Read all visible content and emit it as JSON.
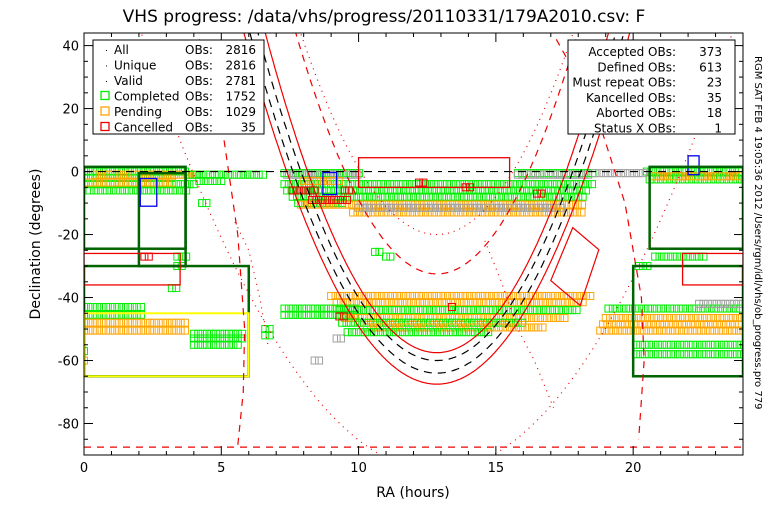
{
  "chart_data": {
    "type": "scatter",
    "title": "VHS progress: /data/vhs/progress/20110331/179A2010.csv: F",
    "xlabel": "RA (hours)",
    "ylabel": "Declination (degrees)",
    "xlim": [
      0,
      24
    ],
    "ylim": [
      -90,
      44
    ],
    "xticks": [
      0,
      5,
      10,
      15,
      20
    ],
    "yticks": [
      -80,
      -60,
      -40,
      -20,
      0,
      20,
      40
    ],
    "grid": false,
    "side_label": "RGM SAT FEB  4 19:05:36 2012 /Users/rgm/idl/vhs/ob_progress.pro 779",
    "colors": {
      "completed": "#00ee00",
      "pending": "#ffa500",
      "cancelled": "#ee0000",
      "other": "#a0a0a0",
      "boxgreen": "#006400",
      "yellow": "#ffff00",
      "blue": "#0000ee"
    },
    "legend_left": {
      "placement": "top-left",
      "items": [
        {
          "symbol": "dot",
          "label": "All",
          "obs_label": "OBs:",
          "value": "2816"
        },
        {
          "symbol": "dot",
          "label": "Unique",
          "obs_label": "OBs:",
          "value": "2816"
        },
        {
          "symbol": "dot",
          "label": "Valid",
          "obs_label": "OBs:",
          "value": "2781"
        },
        {
          "symbol": "completed",
          "label": "Completed",
          "obs_label": "OBs:",
          "value": "1752"
        },
        {
          "symbol": "pending",
          "label": "Pending",
          "obs_label": "OBs:",
          "value": "1029"
        },
        {
          "symbol": "cancelled",
          "label": "Cancelled",
          "obs_label": "OBs:",
          "value": "35"
        }
      ]
    },
    "legend_right": {
      "placement": "top-right",
      "items": [
        {
          "label": "Accepted OBs:",
          "value": "373"
        },
        {
          "label": "Defined OBs:",
          "value": "613"
        },
        {
          "label": "Must repeat OBs:",
          "value": "23"
        },
        {
          "label": "Kancelled OBs:",
          "value": "35"
        },
        {
          "label": "Aborted OBs:",
          "value": "18"
        },
        {
          "label": "Status X OBs:",
          "value": "1"
        }
      ]
    },
    "marker_rows": [
      {
        "status": "completed",
        "ra": [
          0,
          3.7
        ],
        "dec": 0
      },
      {
        "status": "completed",
        "ra": [
          0,
          3.3
        ],
        "dec": -2
      },
      {
        "status": "completed",
        "ra": [
          0,
          4.0
        ],
        "dec": -4
      },
      {
        "status": "completed",
        "ra": [
          0.2,
          3.8
        ],
        "dec": -6
      },
      {
        "status": "pending",
        "ra": [
          0.4,
          4.2
        ],
        "dec": -1
      },
      {
        "status": "pending",
        "ra": [
          0,
          3.2
        ],
        "dec": -3.5
      },
      {
        "status": "completed",
        "ra": [
          3.8,
          6.6
        ],
        "dec": -1
      },
      {
        "status": "completed",
        "ra": [
          4.2,
          5.0
        ],
        "dec": -3
      },
      {
        "status": "completed",
        "ra": [
          4.3,
          4.5
        ],
        "dec": -10
      },
      {
        "status": "completed",
        "ra": [
          3.4,
          3.8
        ],
        "dec": -27
      },
      {
        "status": "completed",
        "ra": [
          3.4,
          3.7
        ],
        "dec": -30
      },
      {
        "status": "completed",
        "ra": [
          3.2,
          3.4
        ],
        "dec": -37
      },
      {
        "status": "cancelled",
        "ra": [
          2.2,
          2.4
        ],
        "dec": -27
      },
      {
        "status": "completed",
        "ra": [
          0,
          2.1
        ],
        "dec": -43
      },
      {
        "status": "completed",
        "ra": [
          0,
          2.2
        ],
        "dec": -45.5
      },
      {
        "status": "pending",
        "ra": [
          0,
          3.8
        ],
        "dec": -48
      },
      {
        "status": "pending",
        "ra": [
          0,
          3.8
        ],
        "dec": -50.5
      },
      {
        "status": "completed",
        "ra": [
          4.0,
          5.8
        ],
        "dec": -51.5
      },
      {
        "status": "completed",
        "ra": [
          4.0,
          5.8
        ],
        "dec": -53
      },
      {
        "status": "completed",
        "ra": [
          4.0,
          5.6
        ],
        "dec": -55
      },
      {
        "status": "completed",
        "ra": [
          6.6,
          6.8
        ],
        "dec": -50
      },
      {
        "status": "completed",
        "ra": [
          6.6,
          6.8
        ],
        "dec": -52
      },
      {
        "status": "completed",
        "ra": [
          0,
          0.1
        ],
        "dec": -57
      },
      {
        "status": "pending",
        "ra": [
          0,
          0.1
        ],
        "dec": -60
      },
      {
        "status": "completed",
        "ra": [
          7.3,
          10.1
        ],
        "dec": -0.5
      },
      {
        "status": "other",
        "ra": [
          7.4,
          10.0
        ],
        "dec": -1
      },
      {
        "status": "completed",
        "ra": [
          15.8,
          18.6
        ],
        "dec": -0.5
      },
      {
        "status": "other",
        "ra": [
          15.8,
          18.5
        ],
        "dec": -1
      },
      {
        "status": "completed",
        "ra": [
          7.3,
          18.5
        ],
        "dec": -4
      },
      {
        "status": "completed",
        "ra": [
          7.4,
          18.4
        ],
        "dec": -6
      },
      {
        "status": "completed",
        "ra": [
          7.6,
          18.3
        ],
        "dec": -8
      },
      {
        "status": "completed",
        "ra": [
          7.8,
          9.5
        ],
        "dec": -10
      },
      {
        "status": "pending",
        "ra": [
          7.9,
          18.2
        ],
        "dec": -10.5
      },
      {
        "status": "pending",
        "ra": [
          9.8,
          18.2
        ],
        "dec": -13
      },
      {
        "status": "other",
        "ra": [
          10.0,
          17.5
        ],
        "dec": -11.5
      },
      {
        "status": "pending",
        "ra": [
          8.0,
          9.3
        ],
        "dec": -3
      },
      {
        "status": "cancelled",
        "ra": [
          7.6,
          8.5
        ],
        "dec": -6
      },
      {
        "status": "cancelled",
        "ra": [
          8.3,
          9.6
        ],
        "dec": -9
      },
      {
        "status": "cancelled",
        "ra": [
          9.5,
          9.8
        ],
        "dec": -6
      },
      {
        "status": "cancelled",
        "ra": [
          13.9,
          14.1
        ],
        "dec": -5
      },
      {
        "status": "cancelled",
        "ra": [
          16.5,
          16.7
        ],
        "dec": -7
      },
      {
        "status": "cancelled",
        "ra": [
          12.2,
          12.5
        ],
        "dec": -3.5
      },
      {
        "status": "completed",
        "ra": [
          10.6,
          10.8
        ],
        "dec": -25.5
      },
      {
        "status": "completed",
        "ra": [
          11.0,
          11.2
        ],
        "dec": -27
      },
      {
        "status": "other",
        "ra": [
          8.4,
          8.6
        ],
        "dec": -60
      },
      {
        "status": "other",
        "ra": [
          9.2,
          9.4
        ],
        "dec": -53
      },
      {
        "status": "pending",
        "ra": [
          9.0,
          18.5
        ],
        "dec": -39.5
      },
      {
        "status": "pending",
        "ra": [
          9.2,
          18.3
        ],
        "dec": -41.5
      },
      {
        "status": "completed",
        "ra": [
          7.3,
          10.0
        ],
        "dec": -43.5
      },
      {
        "status": "completed",
        "ra": [
          7.3,
          10.0
        ],
        "dec": -45.5
      },
      {
        "status": "completed",
        "ra": [
          9.3,
          18.0
        ],
        "dec": -44
      },
      {
        "status": "pending",
        "ra": [
          9.5,
          17.6
        ],
        "dec": -46.5
      },
      {
        "status": "completed",
        "ra": [
          9.4,
          16.0
        ],
        "dec": -48
      },
      {
        "status": "pending",
        "ra": [
          10.3,
          16.8
        ],
        "dec": -49.5
      },
      {
        "status": "completed",
        "ra": [
          9.6,
          14.8
        ],
        "dec": -51
      },
      {
        "status": "cancelled",
        "ra": [
          9.3,
          9.6
        ],
        "dec": -46
      },
      {
        "status": "cancelled",
        "ra": [
          13.4,
          13.5
        ],
        "dec": -43
      },
      {
        "status": "completed",
        "ra": [
          19.1,
          24
        ],
        "dec": -43.5
      },
      {
        "status": "other",
        "ra": [
          22.4,
          24
        ],
        "dec": -42
      },
      {
        "status": "pending",
        "ra": [
          19.0,
          24
        ],
        "dec": -46.5
      },
      {
        "status": "pending",
        "ra": [
          18.9,
          24
        ],
        "dec": -48.5
      },
      {
        "status": "pending",
        "ra": [
          18.8,
          24
        ],
        "dec": -50.5
      },
      {
        "status": "completed",
        "ra": [
          20.1,
          24
        ],
        "dec": -55
      },
      {
        "status": "completed",
        "ra": [
          20.1,
          24
        ],
        "dec": -58
      },
      {
        "status": "completed",
        "ra": [
          20.5,
          24
        ],
        "dec": 0
      },
      {
        "status": "completed",
        "ra": [
          20.6,
          24
        ],
        "dec": -2.5
      },
      {
        "status": "pending",
        "ra": [
          20.7,
          24
        ],
        "dec": -1.5
      },
      {
        "status": "other",
        "ra": [
          18.6,
          20.4
        ],
        "dec": -0.5
      },
      {
        "status": "completed",
        "ra": [
          20.8,
          22.6
        ],
        "dec": -27
      },
      {
        "status": "completed",
        "ra": [
          20.2,
          20.6
        ],
        "dec": -30
      }
    ],
    "boxes": [
      {
        "color": "boxgreen",
        "ra": [
          0,
          3.7
        ],
        "dec": [
          1.5,
          -24.5
        ]
      },
      {
        "color": "boxgreen",
        "ra": [
          2.0,
          3.7
        ],
        "dec": [
          -0.5,
          -30
        ]
      },
      {
        "color": "boxgreen",
        "ra": [
          0,
          6.0
        ],
        "dec": [
          -30,
          -65
        ]
      },
      {
        "color": "cancelled",
        "ra": [
          0,
          3.5
        ],
        "dec": [
          -26,
          -36
        ]
      },
      {
        "color": "yellow",
        "ra": [
          0,
          6.0
        ],
        "dec": [
          -45,
          -65
        ]
      },
      {
        "color": "blue",
        "ra": [
          2.05,
          2.65
        ],
        "dec": [
          -2.2,
          -11
        ]
      },
      {
        "color": "blue",
        "ra": [
          8.7,
          9.2
        ],
        "dec": [
          -0.3,
          -7.3
        ]
      },
      {
        "color": "blue",
        "ra": [
          22.0,
          22.4
        ],
        "dec": [
          5,
          -1
        ]
      },
      {
        "color": "cancelled",
        "ra": [
          10.0,
          15.5
        ],
        "dec": [
          4.4,
          -5
        ]
      },
      {
        "color": "boxgreen",
        "ra": [
          20.0,
          24
        ],
        "dec": [
          -30,
          -65
        ]
      },
      {
        "color": "boxgreen",
        "ra": [
          20.6,
          24
        ],
        "dec": [
          1.5,
          -24.5
        ]
      },
      {
        "color": "cancelled",
        "ra": [
          21.8,
          24
        ],
        "dec": [
          -26,
          -36
        ]
      }
    ],
    "polygon": {
      "color": "cancelled",
      "points": [
        [
          17.8,
          -17.8
        ],
        [
          18.75,
          -24.8
        ],
        [
          18.07,
          -42.5
        ],
        [
          17.0,
          -34.6
        ]
      ]
    },
    "curves": [
      {
        "style": "red-solid",
        "ra_center": 12.85,
        "min_dec": -57.5,
        "k": 2.6
      },
      {
        "style": "red-solid",
        "ra_center": 12.85,
        "min_dec": -67.5,
        "k": 2.26
      },
      {
        "style": "black-dashed",
        "ra_center": 12.85,
        "min_dec": -60,
        "k": 2.45
      },
      {
        "style": "black-dashed",
        "ra_center": 12.85,
        "min_dec": -64,
        "k": 2.33
      },
      {
        "style": "red-dashed",
        "ra_center": 12.85,
        "min_dec": -32.5,
        "k": 2.9
      },
      {
        "style": "red-dotted",
        "ra_center": 12.85,
        "min_dec": -20,
        "k": 2.6
      },
      {
        "style": "red-dotted",
        "ra_center": 12.85,
        "min_dec": -95,
        "k": 1.2
      }
    ],
    "polylines": [
      {
        "style": "red-dashed",
        "points": [
          [
            4.2,
            42
          ],
          [
            5.1,
            10
          ],
          [
            5.6,
            -20
          ],
          [
            5.85,
            -50
          ],
          [
            5.8,
            -70
          ],
          [
            5.6,
            -87
          ]
        ]
      },
      {
        "style": "red-dashed",
        "points": [
          [
            17.2,
            42
          ],
          [
            18.6,
            20
          ],
          [
            19.7,
            -10
          ],
          [
            20.3,
            -40
          ],
          [
            20.4,
            -60
          ],
          [
            20.2,
            -85
          ]
        ]
      },
      {
        "style": "red-dashed",
        "points": [
          [
            0,
            -87.5
          ],
          [
            24,
            -87.5
          ]
        ]
      },
      {
        "style": "black-dashed",
        "points": [
          [
            0,
            0
          ],
          [
            24,
            0
          ]
        ]
      },
      {
        "style": "red-dotted",
        "points": [
          [
            14.6,
            -22
          ],
          [
            15.2,
            -35
          ],
          [
            15.8,
            -50
          ],
          [
            16.4,
            -60
          ],
          [
            17.1,
            -75
          ]
        ]
      },
      {
        "style": "red-dotted",
        "points": [
          [
            5.5,
            -16
          ],
          [
            6.0,
            -25
          ],
          [
            6.4,
            -40
          ],
          [
            6.7,
            -55
          ]
        ]
      }
    ]
  }
}
